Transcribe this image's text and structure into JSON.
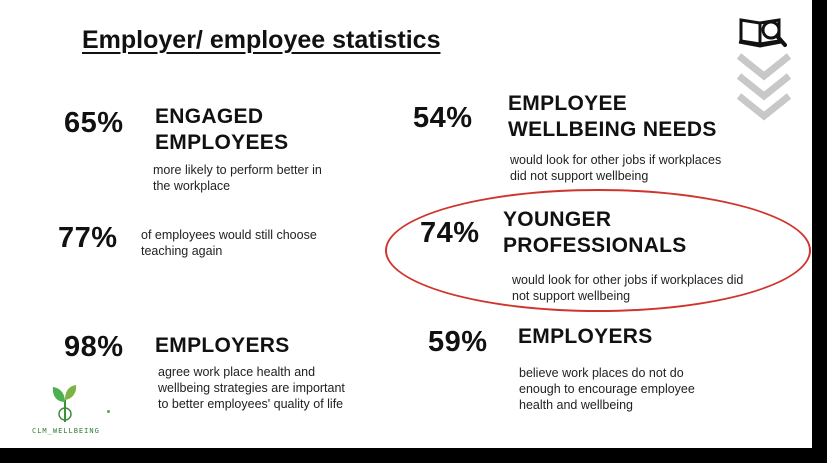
{
  "title": "Employer/ employee statistics",
  "stats": [
    {
      "pct": "65%",
      "heading": [
        "ENGAGED",
        "EMPLOYEES"
      ],
      "desc": [
        "more likely to perform better in",
        "the workplace"
      ]
    },
    {
      "pct": "54%",
      "heading": [
        "EMPLOYEE",
        "WELLBEING NEEDS"
      ],
      "desc": [
        "would look for other jobs if workplaces",
        "did not support wellbeing"
      ]
    },
    {
      "pct": "77%",
      "desc": [
        "of employees would still choose",
        "teaching again"
      ]
    },
    {
      "pct": "74%",
      "heading": [
        "YOUNGER",
        "PROFESSIONALS"
      ],
      "desc": [
        "would look for other jobs if workplaces did",
        "not support wellbeing"
      ]
    },
    {
      "pct": "98%",
      "heading": [
        "EMPLOYERS"
      ],
      "desc": [
        "agree work place health and",
        "wellbeing strategies are important",
        "to better employees' quality of life"
      ]
    },
    {
      "pct": "59%",
      "heading": [
        "EMPLOYERS"
      ],
      "desc": [
        "believe work places do not do",
        "enough to encourage employee",
        "health and wellbeing"
      ]
    }
  ],
  "logo": {
    "text": "CLM_WELLBEING"
  },
  "icons": {
    "top_right": "book-magnifier-icon",
    "arrows": "chevrons-down-icon",
    "logo": "sprout-icon"
  },
  "colors": {
    "highlight": "#d0352d",
    "logo_green": "#2e7d32"
  }
}
